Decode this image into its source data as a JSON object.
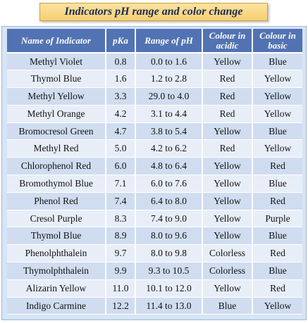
{
  "title": "Indicators pH range and color change",
  "table": {
    "headers": [
      "Name of Indicator",
      "pKa",
      "Range of pH",
      "Colour in acidic",
      "Colour in basic"
    ],
    "rows": [
      [
        "Methyl Violet",
        "0.8",
        "0.0 to 1.6",
        "Yellow",
        "Blue"
      ],
      [
        "Thymol Blue",
        "1.6",
        "1.2 to 2.8",
        "Red",
        "Yellow"
      ],
      [
        "Methyl Yellow",
        "3.3",
        "29.0 to 4.0",
        "Red",
        "Yellow"
      ],
      [
        "Methyl Orange",
        "4.2",
        "3.1 to 4.4",
        "Red",
        "Yellow"
      ],
      [
        "Bromocresol Green",
        "4.7",
        "3.8 to 5.4",
        "Yellow",
        "Blue"
      ],
      [
        "Methyl Red",
        "5.0",
        "4.2 to 6.2",
        "Red",
        "Yellow"
      ],
      [
        "Chlorophenol Red",
        "6.0",
        "4.8 to 6.4",
        "Yellow",
        "Red"
      ],
      [
        "Bromothymol Blue",
        "7.1",
        "6.0 to 7.6",
        "Yellow",
        "Blue"
      ],
      [
        "Phenol Red",
        "7.4",
        "6.4 to 8.0",
        "Yellow",
        "Red"
      ],
      [
        "Cresol Purple",
        "8.3",
        "7.4 to 9.0",
        "Yellow",
        "Purple"
      ],
      [
        "Thymol Blue",
        "8.9",
        "8.0 to 9.6",
        "Yellow",
        "Blue"
      ],
      [
        "Phenolphthalein",
        "9.7",
        "8.0 to 9.8",
        "Colorless",
        "Red"
      ],
      [
        "Thymolphthalein",
        "9.9",
        "9.3 to 10.5",
        "Colorless",
        "Blue"
      ],
      [
        "Alizarin Yellow",
        "11.0",
        "10.1 to 12.0",
        "Yellow",
        "Red"
      ],
      [
        "Indigo Carmine",
        "12.2",
        "11.4 to 13.0",
        "Blue",
        "Yellow"
      ]
    ]
  }
}
